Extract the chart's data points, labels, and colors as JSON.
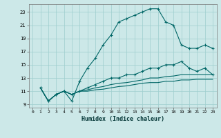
{
  "xlabel": "Humidex (Indice chaleur)",
  "bg_color": "#cce8e8",
  "grid_color": "#9ecece",
  "line_color": "#006666",
  "xlim": [
    -0.5,
    23.5
  ],
  "ylim": [
    8.5,
    24.2
  ],
  "xticks": [
    0,
    1,
    2,
    3,
    4,
    5,
    6,
    7,
    8,
    9,
    10,
    11,
    12,
    13,
    14,
    15,
    16,
    17,
    18,
    19,
    20,
    21,
    22,
    23
  ],
  "yticks": [
    9,
    11,
    13,
    15,
    17,
    19,
    21,
    23
  ],
  "lines": [
    {
      "x": [
        1,
        2,
        3,
        4,
        5,
        6,
        7,
        8,
        9,
        10,
        11,
        12,
        13,
        14,
        15,
        16,
        17,
        18,
        19,
        20,
        21,
        22,
        23
      ],
      "y": [
        11.5,
        9.5,
        10.5,
        11.0,
        9.5,
        12.5,
        14.5,
        16.0,
        18.0,
        19.5,
        21.5,
        22.0,
        22.5,
        23.0,
        23.5,
        23.5,
        21.5,
        21.0,
        18.0,
        17.5,
        17.5,
        18.0,
        17.5
      ],
      "has_markers": true
    },
    {
      "x": [
        1,
        2,
        3,
        4,
        5,
        6,
        7,
        8,
        9,
        10,
        11,
        12,
        13,
        14,
        15,
        16,
        17,
        18,
        19,
        20,
        21,
        22,
        23
      ],
      "y": [
        11.5,
        9.5,
        10.5,
        11.0,
        10.5,
        11.0,
        11.5,
        12.0,
        12.5,
        13.0,
        13.0,
        13.5,
        13.5,
        14.0,
        14.5,
        14.5,
        15.0,
        15.0,
        15.5,
        14.5,
        14.0,
        14.5,
        13.5
      ],
      "has_markers": true
    },
    {
      "x": [
        1,
        2,
        3,
        4,
        5,
        6,
        7,
        8,
        9,
        10,
        11,
        12,
        13,
        14,
        15,
        16,
        17,
        18,
        19,
        20,
        21,
        22,
        23
      ],
      "y": [
        11.5,
        9.5,
        10.5,
        11.0,
        10.5,
        11.0,
        11.2,
        11.5,
        11.7,
        12.0,
        12.2,
        12.3,
        12.5,
        12.7,
        13.0,
        13.0,
        13.2,
        13.3,
        13.5,
        13.5,
        13.5,
        13.5,
        13.5
      ],
      "has_markers": false
    },
    {
      "x": [
        1,
        2,
        3,
        4,
        5,
        6,
        7,
        8,
        9,
        10,
        11,
        12,
        13,
        14,
        15,
        16,
        17,
        18,
        19,
        20,
        21,
        22,
        23
      ],
      "y": [
        11.5,
        9.5,
        10.5,
        11.0,
        10.5,
        11.0,
        11.0,
        11.2,
        11.3,
        11.5,
        11.7,
        11.8,
        12.0,
        12.2,
        12.3,
        12.3,
        12.5,
        12.5,
        12.7,
        12.7,
        12.8,
        12.8,
        12.8
      ],
      "has_markers": false
    }
  ]
}
